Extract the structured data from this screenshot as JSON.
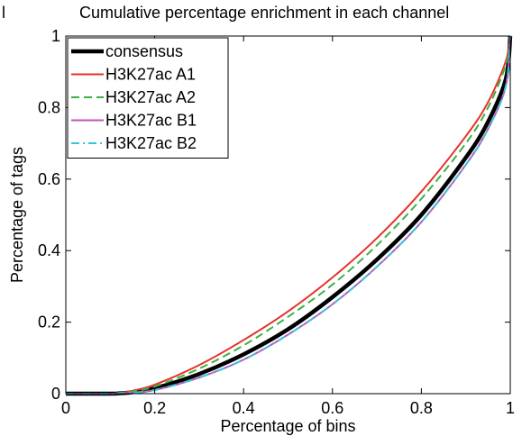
{
  "panel_label": "l",
  "chart_data": {
    "type": "line",
    "title": "Cumulative percentage enrichment in each channel",
    "xlabel": "Percentage of bins",
    "ylabel": "Percentage of tags",
    "xlim": [
      0,
      1
    ],
    "ylim": [
      0,
      1
    ],
    "xticks": [
      "0",
      "0.2",
      "0.4",
      "0.6",
      "0.8",
      "1"
    ],
    "yticks": [
      "0",
      "0.2",
      "0.4",
      "0.6",
      "0.8",
      "1"
    ],
    "grid": false,
    "legend_position": "top-left",
    "x": [
      0,
      0.1,
      0.12,
      0.15,
      0.2,
      0.3,
      0.4,
      0.5,
      0.6,
      0.7,
      0.8,
      0.9,
      0.95,
      0.99,
      1.0
    ],
    "series": [
      {
        "name": "consensus",
        "color": "#000000",
        "style": "solid-thick",
        "values": [
          0,
          0,
          0.001,
          0.004,
          0.015,
          0.055,
          0.11,
          0.18,
          0.27,
          0.375,
          0.5,
          0.66,
          0.76,
          0.88,
          1.0
        ]
      },
      {
        "name": "H3K27ac A1",
        "color": "#e8312a",
        "style": "solid",
        "values": [
          0,
          0,
          0.002,
          0.008,
          0.025,
          0.08,
          0.15,
          0.23,
          0.325,
          0.435,
          0.565,
          0.72,
          0.815,
          0.93,
          1.0
        ]
      },
      {
        "name": "H3K27ac A2",
        "color": "#3cb043",
        "style": "dash",
        "values": [
          0,
          0,
          0.002,
          0.006,
          0.02,
          0.07,
          0.135,
          0.215,
          0.305,
          0.415,
          0.545,
          0.7,
          0.8,
          0.92,
          1.0
        ]
      },
      {
        "name": "H3K27ac B1",
        "color": "#c453b8",
        "style": "solid",
        "values": [
          0,
          0,
          0.001,
          0.003,
          0.01,
          0.045,
          0.095,
          0.165,
          0.25,
          0.355,
          0.48,
          0.64,
          0.74,
          0.86,
          1.0
        ]
      },
      {
        "name": "H3K27ac B2",
        "color": "#38c4dc",
        "style": "dashdot",
        "values": [
          0,
          0,
          0.001,
          0.003,
          0.01,
          0.045,
          0.095,
          0.165,
          0.25,
          0.355,
          0.48,
          0.64,
          0.74,
          0.86,
          1.0
        ]
      }
    ]
  }
}
